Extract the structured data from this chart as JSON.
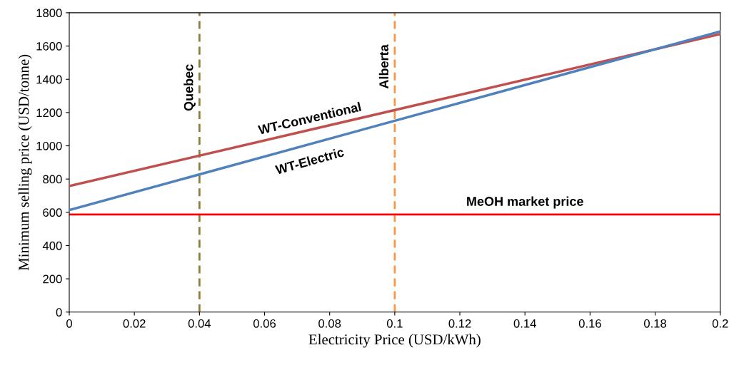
{
  "chart_data": {
    "type": "line",
    "xlabel": "Electricity Price (USD/kWh)",
    "ylabel": "Minimum selling price (USD/tonne)",
    "x": [
      0,
      0.2
    ],
    "series": [
      {
        "name": "WT-Conventional",
        "color": "#c0504d",
        "values": [
          758,
          1672
        ]
      },
      {
        "name": "WT-Electric",
        "color": "#4f81bd",
        "values": [
          613,
          1688
        ]
      }
    ],
    "ref_lines": [
      {
        "axis": "x",
        "value": 0.04,
        "label": "Quebec",
        "color": "#8c7e3c",
        "line_style": "dashed"
      },
      {
        "axis": "x",
        "value": 0.1,
        "label": "Alberta",
        "color": "#f79646",
        "line_style": "dashed"
      },
      {
        "axis": "y",
        "value": 587,
        "label": "MeOH market price",
        "color": "#ff0000",
        "line_style": "solid"
      }
    ],
    "xlim": [
      0,
      0.2
    ],
    "xticks": [
      0,
      0.02,
      0.04,
      0.06,
      0.08,
      0.1,
      0.12,
      0.14,
      0.16,
      0.18,
      0.2
    ],
    "ylim": [
      0,
      1800
    ],
    "yticks": [
      0,
      200,
      400,
      600,
      800,
      1000,
      1200,
      1400,
      1600,
      1800
    ],
    "grid": false,
    "legend": false,
    "marker": "none",
    "line_style": "solid"
  }
}
